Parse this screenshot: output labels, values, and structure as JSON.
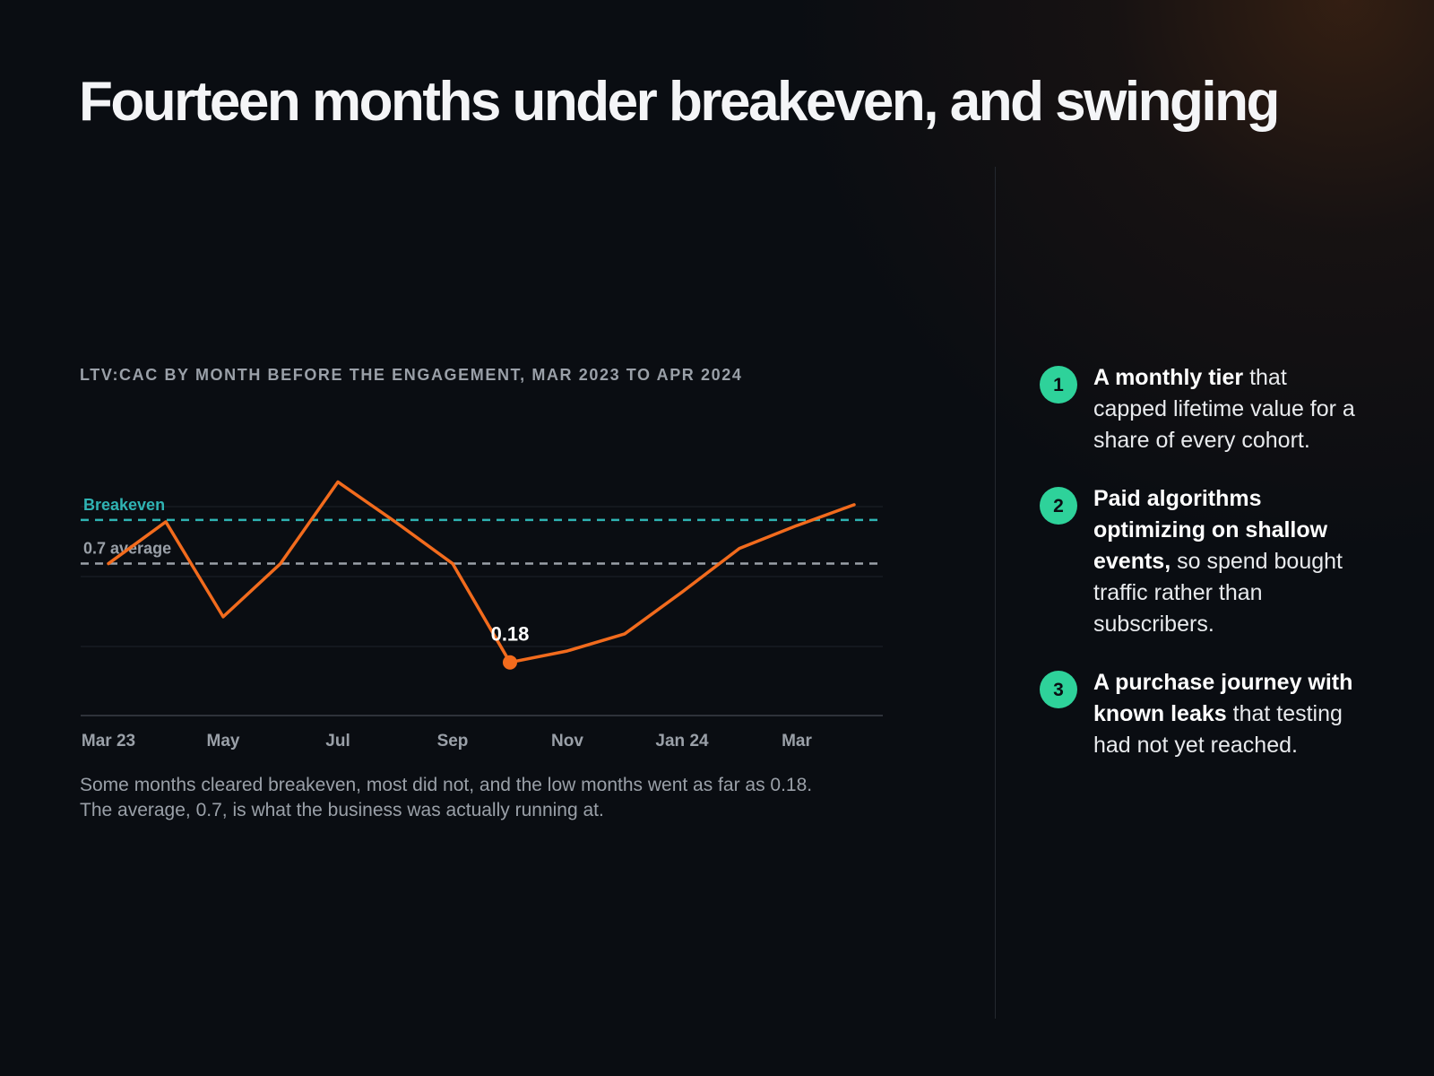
{
  "title": "Fourteen months under breakeven, and swinging",
  "colors": {
    "line": "#f26b1d",
    "breakeven": "#2fb3b3",
    "average": "#9aa0a8",
    "badge": "#2ed29a"
  },
  "chart_data": {
    "type": "line",
    "subtitle": "LTV:CAC BY MONTH BEFORE THE ENGAGEMENT, MAR 2023 TO APR 2024",
    "x": [
      "Mar 2023",
      "Apr 2023",
      "May 2023",
      "Jun 2023",
      "Jul 2023",
      "Aug 2023",
      "Sep 2023",
      "Oct 2023",
      "Nov 2023",
      "Dec 2023",
      "Jan 2024",
      "Feb 2024",
      "Mar 2024",
      "Apr 2024"
    ],
    "x_tick_labels": [
      "Mar 23",
      "May",
      "Jul",
      "Sep",
      "Nov",
      "Jan 24",
      "Mar"
    ],
    "series": [
      {
        "values": [
          0.7,
          0.92,
          0.42,
          0.7,
          1.13,
          0.92,
          0.7,
          0.18,
          0.24,
          0.33,
          0.55,
          0.78,
          0.9,
          1.01
        ]
      }
    ],
    "reference_lines": [
      {
        "label": "Breakeven",
        "value": 0.93
      },
      {
        "label": "0.7 average",
        "value": 0.7
      }
    ],
    "annotation": {
      "label": "0.18",
      "value": 0.18,
      "index": 7
    },
    "grid": true,
    "ylim": [
      -0.1,
      1.0
    ]
  },
  "caption_line1": "Some months cleared breakeven, most did not, and the low months went as far as 0.18.",
  "caption_line2": "The average, 0.7, is what the business was actually running at.",
  "reasons": [
    {
      "number": "1",
      "strong": "A monthly tier",
      "rest": " that capped lifetime value for a share of every cohort."
    },
    {
      "number": "2",
      "strong": "Paid algorithms optimizing on shallow events,",
      "rest": " so spend bought traffic rather than subscribers."
    },
    {
      "number": "3",
      "strong": "A purchase journey with known leaks",
      "rest": " that testing had not yet reached."
    }
  ]
}
